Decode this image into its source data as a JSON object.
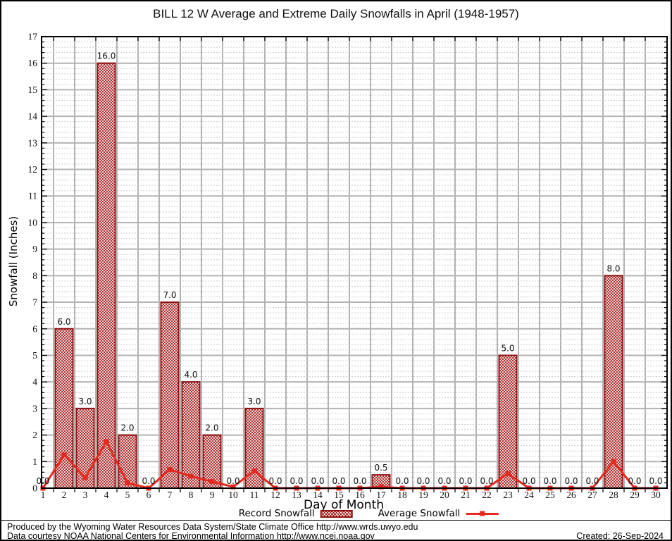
{
  "title": "BILL 12 W Average and Extreme Daily Snowfalls in April (1948-1957)",
  "y_axis": {
    "label": "Snowfall (Inches)",
    "min": 0,
    "max": 17,
    "tick_step": 1
  },
  "x_axis": {
    "label": "Day of Month",
    "first_day": 1,
    "last_day": 30
  },
  "legend": {
    "record_label": "Record Snowfall",
    "average_label": "Average Snowfall"
  },
  "footer": {
    "line1": "Produced by the Wyoming Water Resources Data System/State Climate Office http://www.wrds.uwyo.edu",
    "line2": "Data courtesy NOAA National Centers for Environmental Information http://www.ncei.noaa.gov",
    "created": "Created: 26-Sep-2024"
  },
  "colors": {
    "bar_border": "#8f1010",
    "bar_hatch": "#a31515",
    "line": "#e5291d",
    "grid_major": "#b3b3b3",
    "grid_minor": "#cdcdcd",
    "axis": "#000000",
    "text": "#111111"
  },
  "chart_data": {
    "type": "bar",
    "title": "BILL 12 W Average and Extreme Daily Snowfalls in April (1948-1957)",
    "xlabel": "Day of Month",
    "ylabel": "Snowfall (Inches)",
    "ylim": [
      0,
      17
    ],
    "grid": "major and minor, gray",
    "legend_position": "bottom center",
    "categories": [
      1,
      2,
      3,
      4,
      5,
      6,
      7,
      8,
      9,
      10,
      11,
      12,
      13,
      14,
      15,
      16,
      17,
      18,
      19,
      20,
      21,
      22,
      23,
      24,
      25,
      26,
      27,
      28,
      29,
      30
    ],
    "series": [
      {
        "name": "Record Snowfall",
        "type": "bar",
        "values": [
          0,
          6,
          3,
          16,
          2,
          0,
          7,
          4,
          2,
          0,
          3,
          0,
          0,
          0,
          0,
          0,
          0.5,
          0,
          0,
          0,
          0,
          0,
          5,
          0,
          0,
          0,
          0,
          8,
          0,
          0
        ],
        "labels": [
          "0.0",
          "6.0",
          "3.0",
          "16.0",
          "2.0",
          "0.0",
          "7.0",
          "4.0",
          "2.0",
          "0.0",
          "3.0",
          "0.0",
          "0.0",
          "0.0",
          "0.0",
          "0.0",
          "0.5",
          "0.0",
          "0.0",
          "0.0",
          "0.0",
          "0.0",
          "5.0",
          "0.0",
          "0.0",
          "0.0",
          "0.0",
          "8.0",
          "0.0",
          "0.0"
        ]
      },
      {
        "name": "Average Snowfall",
        "type": "line",
        "values": [
          0,
          1.25,
          0.4,
          1.75,
          0.2,
          0,
          0.7,
          0.45,
          0.25,
          0.05,
          0.65,
          0,
          0,
          0,
          0,
          0,
          0.05,
          0,
          0,
          0,
          0,
          0,
          0.55,
          0,
          0,
          0,
          0,
          1.0,
          0,
          0
        ]
      }
    ]
  }
}
